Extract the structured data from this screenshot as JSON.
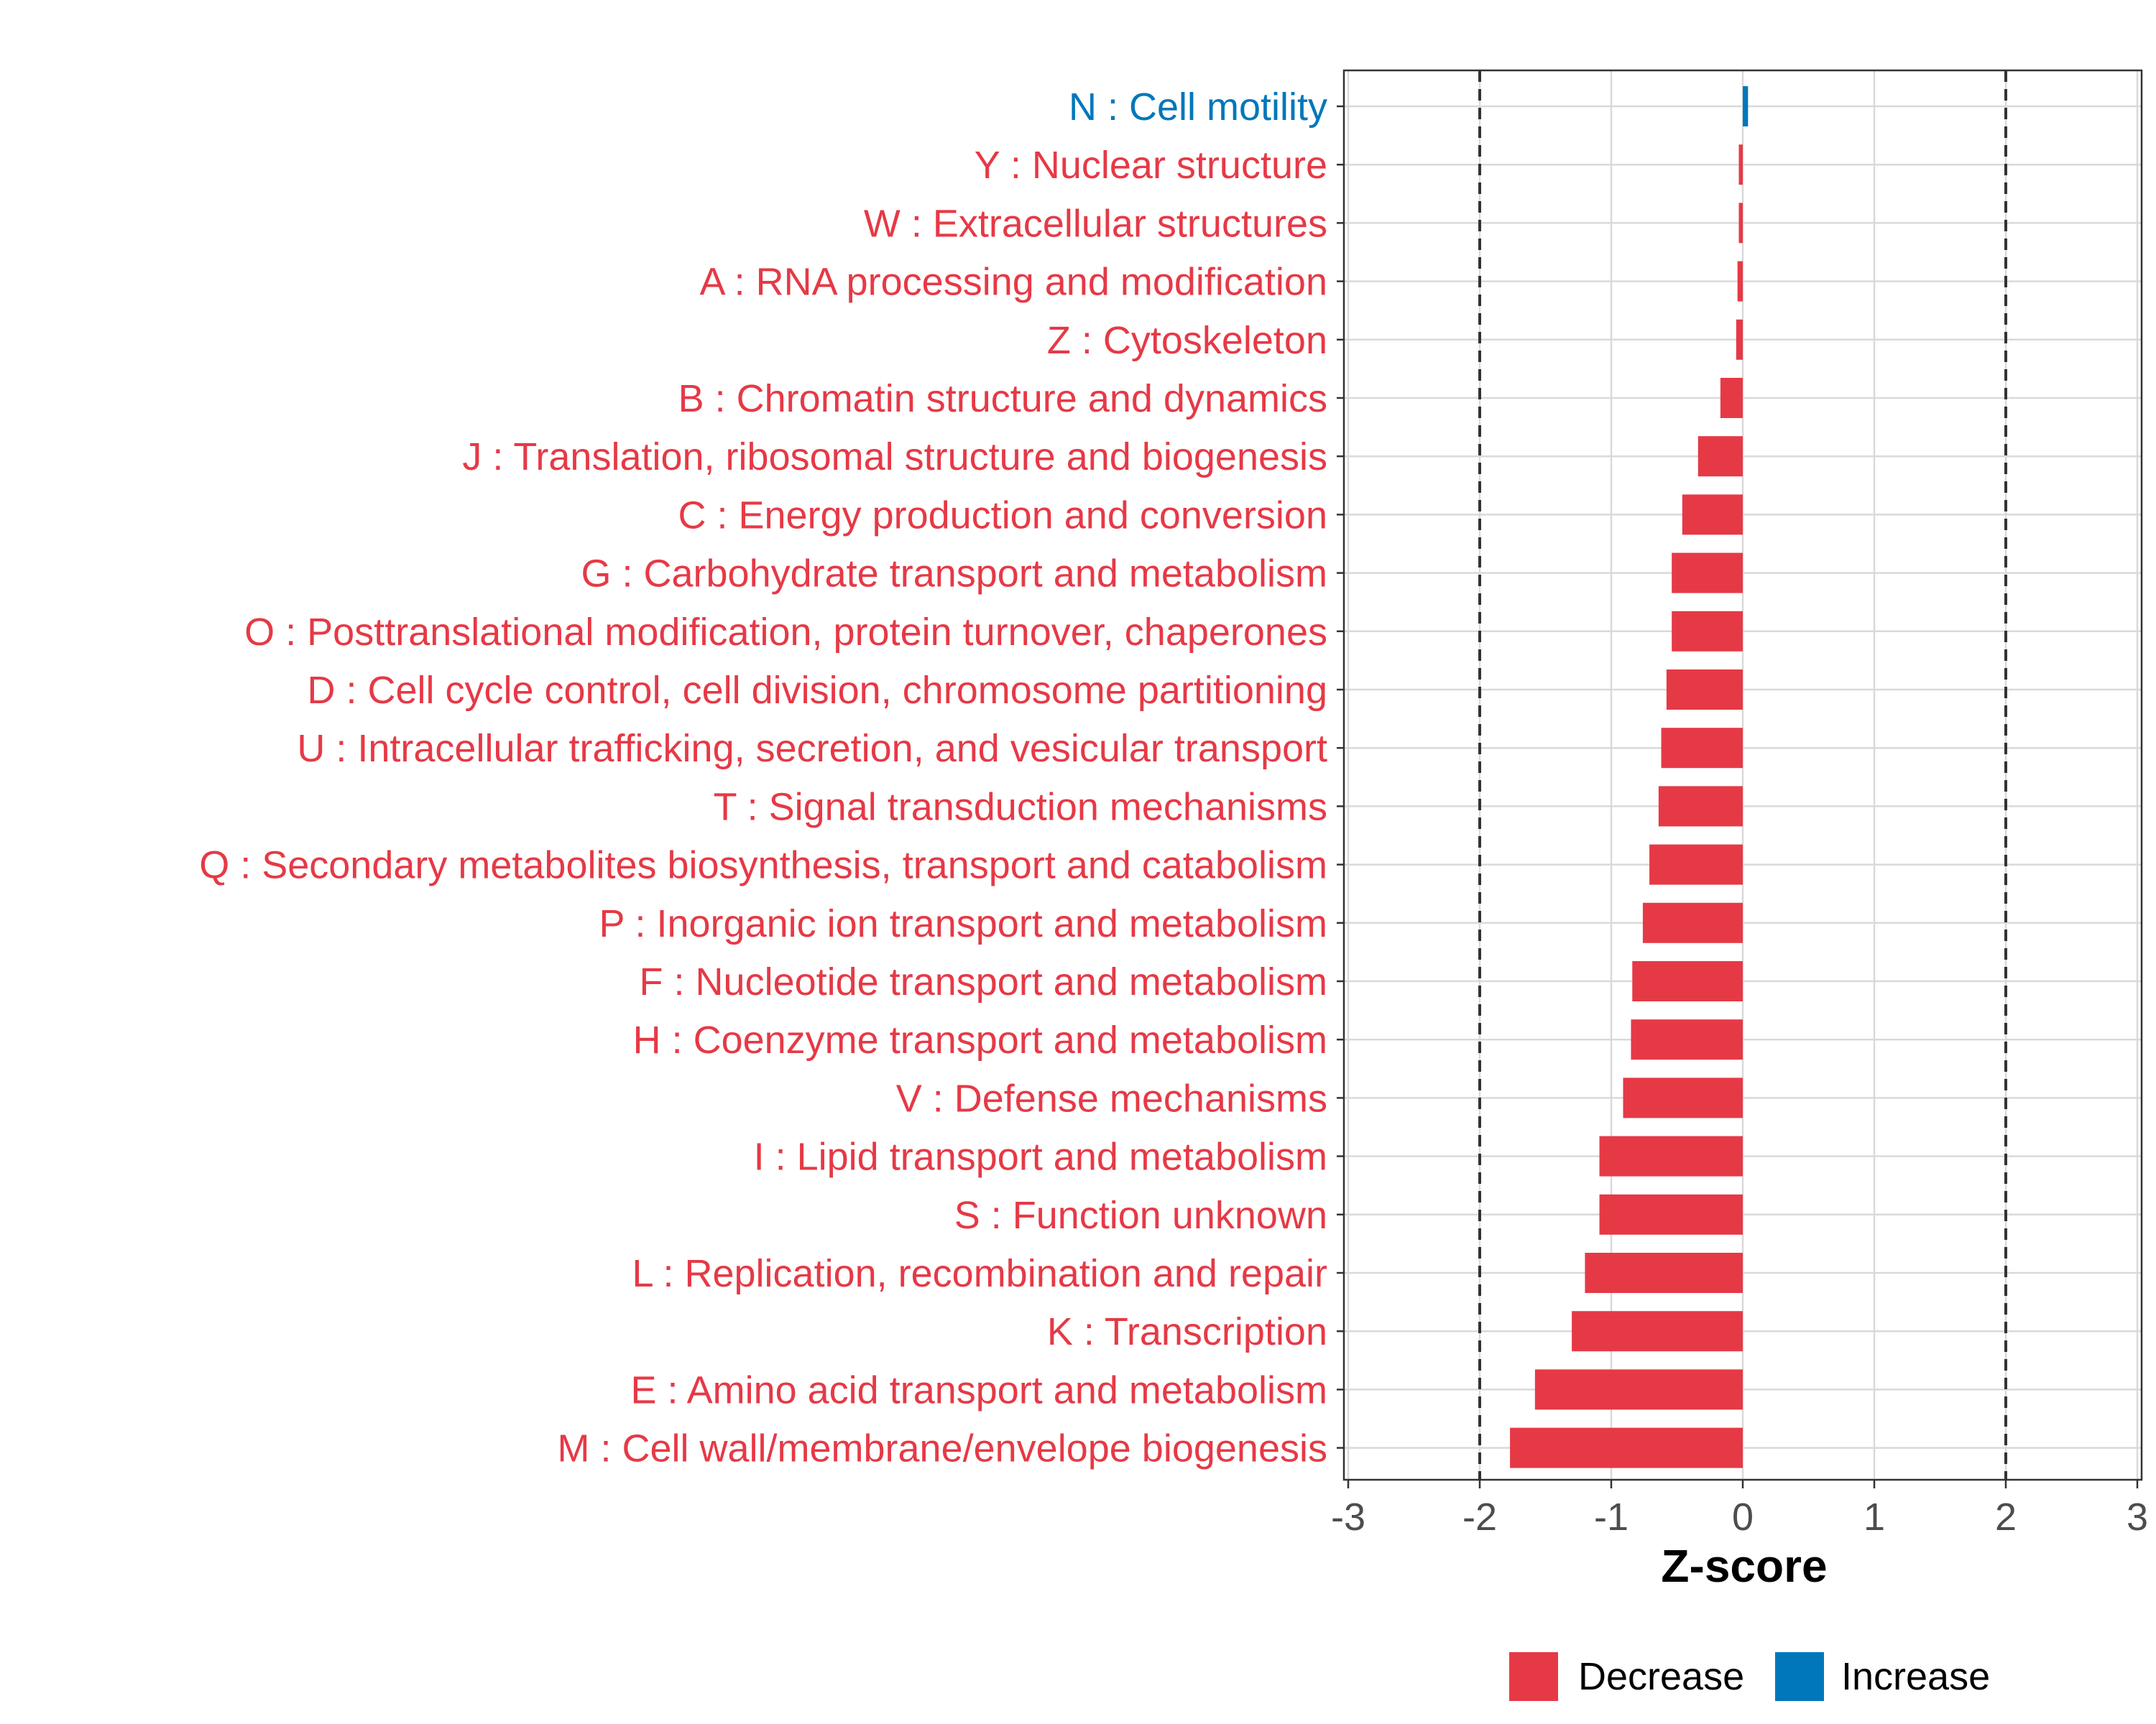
{
  "colors": {
    "decrease": "#E63946",
    "increase": "#0077BB",
    "grid": "#D9D9D9",
    "axis_text": "#4D4D4D"
  },
  "chart_data": {
    "type": "bar",
    "orientation": "horizontal",
    "categories": [
      "N : Cell motility",
      "Y : Nuclear structure",
      "W : Extracellular structures",
      "A : RNA processing and modification",
      "Z : Cytoskeleton",
      "B : Chromatin structure and dynamics",
      "J : Translation, ribosomal structure and biogenesis",
      "C : Energy production and conversion",
      "G : Carbohydrate transport and metabolism",
      "O : Posttranslational modification, protein turnover, chaperones",
      "D : Cell cycle control, cell division, chromosome partitioning",
      "U : Intracellular trafficking, secretion, and vesicular transport",
      "T : Signal transduction mechanisms",
      "Q : Secondary metabolites biosynthesis, transport and catabolism",
      "P : Inorganic ion transport and metabolism",
      "F : Nucleotide transport and metabolism",
      "H : Coenzyme transport and metabolism",
      "V : Defense mechanisms",
      "I : Lipid transport and metabolism",
      "S : Function unknown",
      "L : Replication, recombination and repair",
      "K : Transcription",
      "E : Amino acid transport and metabolism",
      "M : Cell wall/membrane/envelope biogenesis"
    ],
    "values": [
      0.04,
      -0.03,
      -0.03,
      -0.04,
      -0.05,
      -0.17,
      -0.34,
      -0.46,
      -0.54,
      -0.54,
      -0.58,
      -0.62,
      -0.64,
      -0.71,
      -0.76,
      -0.84,
      -0.85,
      -0.91,
      -1.09,
      -1.09,
      -1.2,
      -1.3,
      -1.58,
      -1.77
    ],
    "direction": [
      "Increase",
      "Decrease",
      "Decrease",
      "Decrease",
      "Decrease",
      "Decrease",
      "Decrease",
      "Decrease",
      "Decrease",
      "Decrease",
      "Decrease",
      "Decrease",
      "Decrease",
      "Decrease",
      "Decrease",
      "Decrease",
      "Decrease",
      "Decrease",
      "Decrease",
      "Decrease",
      "Decrease",
      "Decrease",
      "Decrease",
      "Decrease"
    ],
    "xlabel": "Z-score",
    "xlim": [
      -3,
      3
    ],
    "xticks": [
      "-3",
      "-2",
      "-1",
      "0",
      "1",
      "2",
      "3"
    ],
    "reference_lines": [
      -2,
      2
    ],
    "grid": true,
    "legend": {
      "placement": "bottom",
      "entries": [
        {
          "label": "Decrease",
          "key": "decrease"
        },
        {
          "label": "Increase",
          "key": "increase"
        }
      ]
    }
  }
}
